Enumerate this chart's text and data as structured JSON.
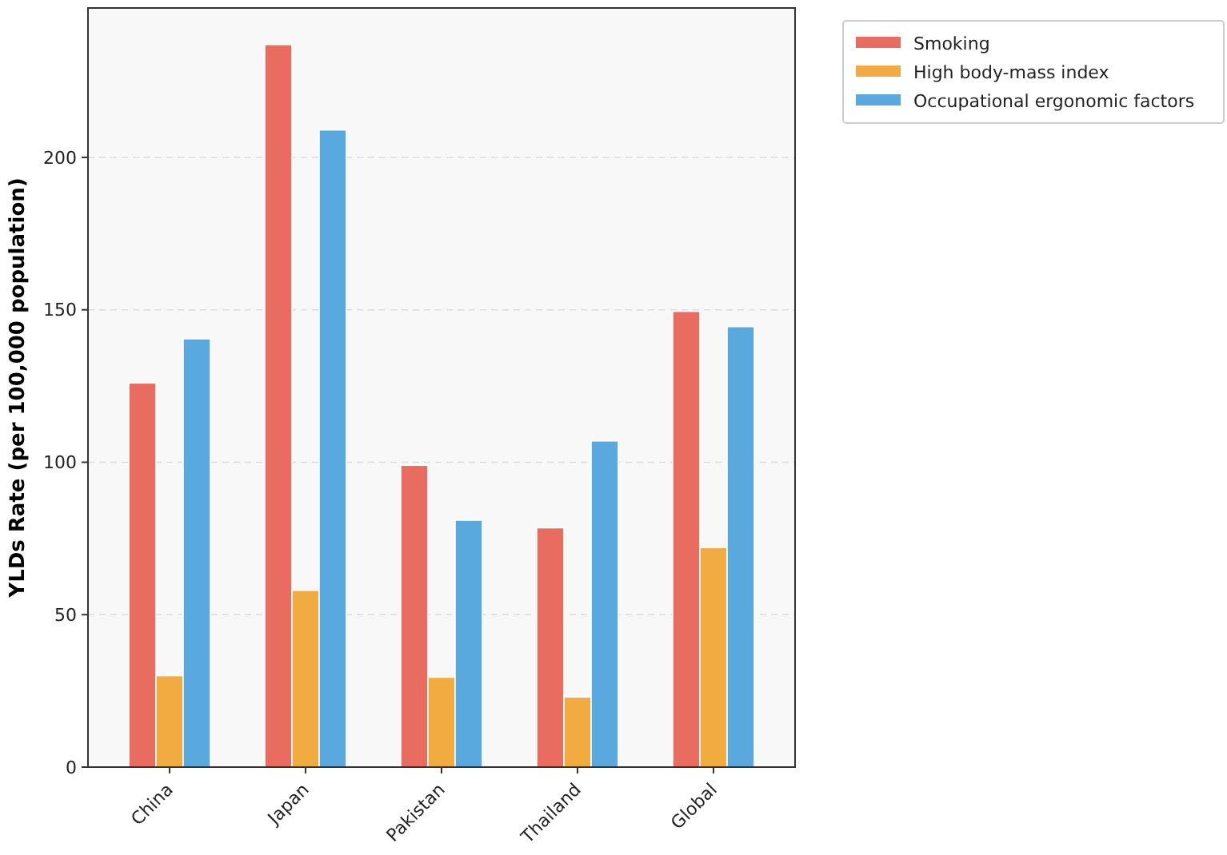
{
  "chart_data": {
    "type": "bar",
    "ylabel": "YLDs Rate (per 100,000 population)",
    "categories": [
      "China",
      "Japan",
      "Pakistan",
      "Thailand",
      "Global"
    ],
    "series": [
      {
        "name": "Smoking",
        "color": "#e96c61",
        "values": [
          126,
          237,
          99,
          78.5,
          149.5
        ]
      },
      {
        "name": "High body-mass index",
        "color": "#f2ab40",
        "values": [
          30,
          58,
          29.5,
          23,
          72
        ]
      },
      {
        "name": "Occupational ergonomic factors",
        "color": "#5aa9de",
        "values": [
          140.5,
          209,
          81,
          107,
          144.5
        ]
      }
    ],
    "ylim": [
      0,
      249
    ],
    "yticks": [
      0,
      50,
      100,
      150,
      200
    ],
    "grid": "y",
    "legend": "top right"
  }
}
